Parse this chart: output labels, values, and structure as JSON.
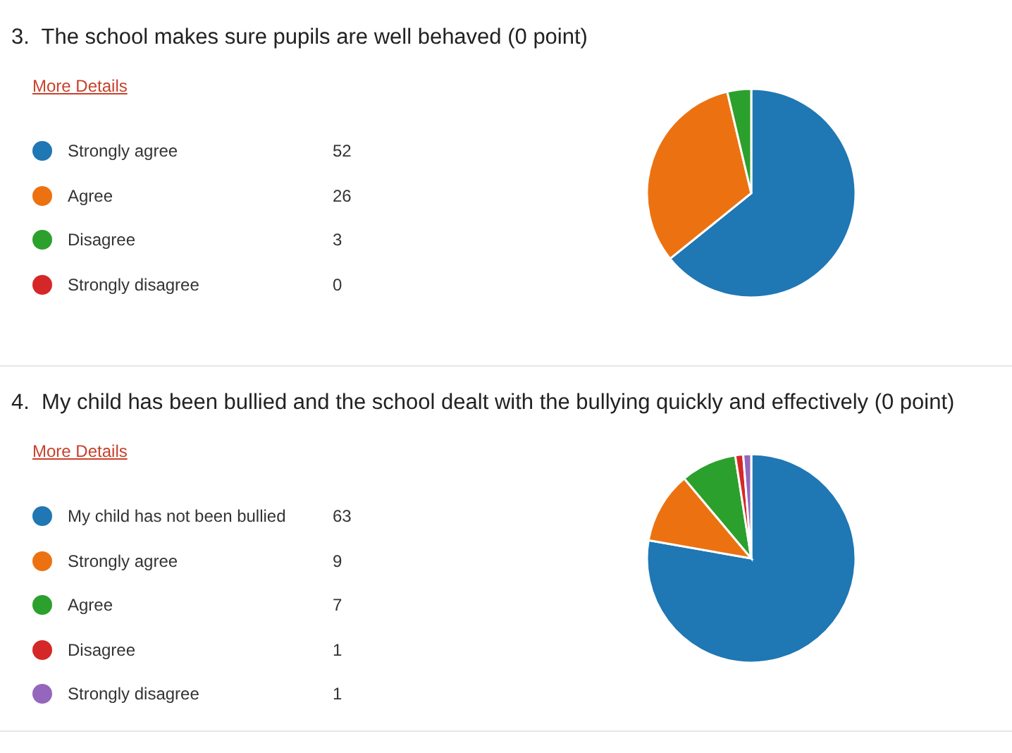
{
  "chart_data": [
    {
      "type": "pie",
      "title": "3.  The school makes sure pupils are well behaved (0 point)",
      "annotations": [
        "More Details"
      ],
      "categories": [
        "Strongly agree",
        "Agree",
        "Disagree",
        "Strongly disagree"
      ],
      "values": [
        52,
        26,
        3,
        0
      ],
      "value_labels": [
        "52",
        "26",
        "3",
        "0"
      ],
      "colors": [
        "#1f77b4",
        "#ec7211",
        "#2ca02c",
        "#d62728"
      ],
      "legend": "left"
    },
    {
      "type": "pie",
      "title": "4.  My child has been bullied and the school dealt with the bullying quickly and effectively (0 point)",
      "annotations": [
        "More Details"
      ],
      "categories": [
        "My child has not been bullied",
        "Strongly agree",
        "Agree",
        "Disagree",
        "Strongly disagree"
      ],
      "values": [
        63,
        9,
        7,
        1,
        1
      ],
      "value_labels": [
        "63",
        "9",
        "7",
        "1",
        "1"
      ],
      "colors": [
        "#1f77b4",
        "#ec7211",
        "#2ca02c",
        "#d62728",
        "#9467bd"
      ],
      "legend": "left"
    }
  ]
}
